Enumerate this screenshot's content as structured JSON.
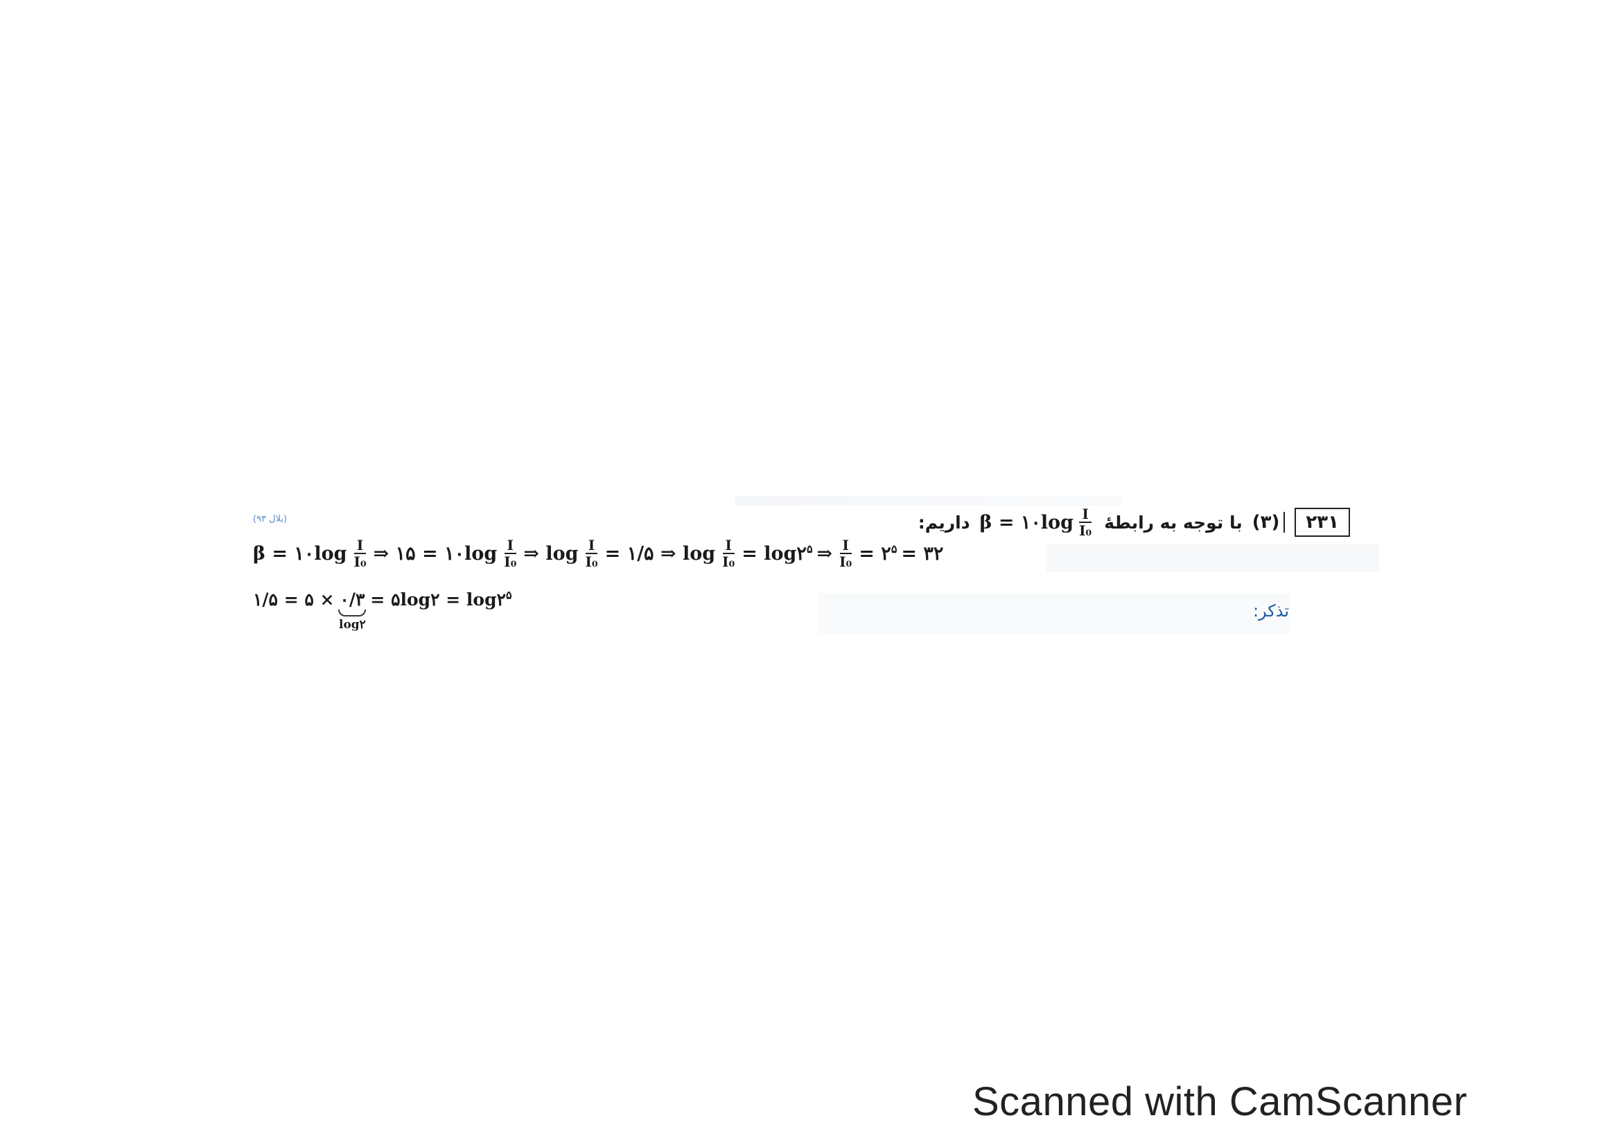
{
  "question": {
    "number": "۲۳۱",
    "option": "(۳)",
    "intro": "با توجه به رابطهٔ",
    "intro_end": "داریم:",
    "relation": "β = ۱۰log",
    "relation_num": "I",
    "relation_den": "I₀",
    "ref_link": "(بلال ۹۳)"
  },
  "equation1": {
    "p1": "β = ۱۰log",
    "f1_num": "I",
    "f1_den": "I₀",
    "p2": "⇒ ۱۵ = ۱۰log",
    "f2_num": "I",
    "f2_den": "I₀",
    "p3": "⇒ log",
    "f3_num": "I",
    "f3_den": "I₀",
    "p4": "= ۱/۵ ⇒ log",
    "f4_num": "I",
    "f4_den": "I₀",
    "p5": "= log۲",
    "exp1": "۵",
    "p6": "⇒",
    "f5_num": "I",
    "f5_den": "I₀",
    "p7": "= ۲",
    "exp2": "۵",
    "p8": "= ۳۲"
  },
  "equation2": {
    "p1": "۱/۵ = ۵ ×",
    "braced": "۰/۳",
    "brace_label": "log۲",
    "p2": "= ۵log۲ = log۲",
    "exp": "۵"
  },
  "note_label": "تذکر:",
  "watermark": "Scanned with CamScanner"
}
